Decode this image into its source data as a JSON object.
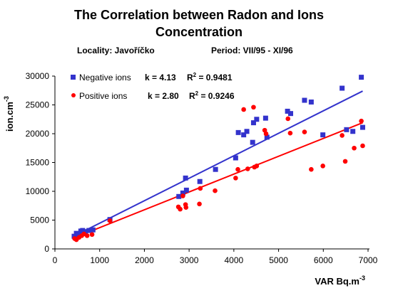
{
  "chart_data": {
    "type": "scatter",
    "title_line1": "The Correlation between Radon and Ions",
    "title_line2": "Concentration",
    "locality": "Locality: Javoříčko",
    "period": "Period: VII/95 - XI/96",
    "xlabel": "VAR  Bq.m",
    "xlabel_sup": "-3",
    "ylabel": "ion.cm",
    "ylabel_sup": "-3",
    "xlim": [
      0,
      7000
    ],
    "ylim": [
      0,
      30000
    ],
    "xticks": [
      "0",
      "1000",
      "2000",
      "3000",
      "4000",
      "5000",
      "6000",
      "7000"
    ],
    "yticks": [
      "0",
      "5000",
      "10000",
      "15000",
      "20000",
      "25000",
      "30000"
    ],
    "legend_position": "top-left",
    "grid": false,
    "series": [
      {
        "name": "Negative ions",
        "marker": "square",
        "color": "#3333cc",
        "stat_k": "k = 4.13",
        "stat_r2": "R",
        "stat_r2_sup": "2",
        "stat_r2_val": " = 0.9481",
        "trend": {
          "x": [
            420,
            6880
          ],
          "y": [
            2200,
            27400
          ]
        },
        "points": [
          {
            "x": 430,
            "y": 2200
          },
          {
            "x": 480,
            "y": 2700
          },
          {
            "x": 530,
            "y": 2500
          },
          {
            "x": 580,
            "y": 3100
          },
          {
            "x": 620,
            "y": 3200
          },
          {
            "x": 680,
            "y": 3000
          },
          {
            "x": 760,
            "y": 3200
          },
          {
            "x": 850,
            "y": 3300
          },
          {
            "x": 1230,
            "y": 5100
          },
          {
            "x": 2770,
            "y": 9100
          },
          {
            "x": 2860,
            "y": 9700
          },
          {
            "x": 2920,
            "y": 12300
          },
          {
            "x": 2940,
            "y": 10200
          },
          {
            "x": 3240,
            "y": 11700
          },
          {
            "x": 3590,
            "y": 13800
          },
          {
            "x": 4040,
            "y": 15800
          },
          {
            "x": 4100,
            "y": 20200
          },
          {
            "x": 4220,
            "y": 19800
          },
          {
            "x": 4290,
            "y": 20400
          },
          {
            "x": 4420,
            "y": 18500
          },
          {
            "x": 4440,
            "y": 21900
          },
          {
            "x": 4510,
            "y": 22500
          },
          {
            "x": 4710,
            "y": 22700
          },
          {
            "x": 4740,
            "y": 19400
          },
          {
            "x": 5200,
            "y": 23900
          },
          {
            "x": 5270,
            "y": 23500
          },
          {
            "x": 5580,
            "y": 25800
          },
          {
            "x": 5730,
            "y": 25500
          },
          {
            "x": 5990,
            "y": 19800
          },
          {
            "x": 6420,
            "y": 27900
          },
          {
            "x": 6520,
            "y": 20700
          },
          {
            "x": 6660,
            "y": 20400
          },
          {
            "x": 6850,
            "y": 29800
          },
          {
            "x": 6880,
            "y": 21100
          }
        ]
      },
      {
        "name": "Positive ions",
        "marker": "circle",
        "color": "#ff0000",
        "stat_k": "k = 2.80",
        "stat_r2": "R",
        "stat_r2_sup": "2",
        "stat_r2_val": " = 0.9246",
        "trend": {
          "x": [
            420,
            6880
          ],
          "y": [
            1900,
            21900
          ]
        },
        "points": [
          {
            "x": 440,
            "y": 1800
          },
          {
            "x": 480,
            "y": 1600
          },
          {
            "x": 540,
            "y": 2000
          },
          {
            "x": 600,
            "y": 2300
          },
          {
            "x": 650,
            "y": 2600
          },
          {
            "x": 720,
            "y": 2300
          },
          {
            "x": 830,
            "y": 2500
          },
          {
            "x": 1230,
            "y": 4900
          },
          {
            "x": 2760,
            "y": 7300
          },
          {
            "x": 2800,
            "y": 6900
          },
          {
            "x": 2860,
            "y": 9200
          },
          {
            "x": 2920,
            "y": 7700
          },
          {
            "x": 2930,
            "y": 7200
          },
          {
            "x": 3230,
            "y": 7800
          },
          {
            "x": 3250,
            "y": 10500
          },
          {
            "x": 3580,
            "y": 10100
          },
          {
            "x": 4040,
            "y": 12300
          },
          {
            "x": 4090,
            "y": 13800
          },
          {
            "x": 4220,
            "y": 24200
          },
          {
            "x": 4310,
            "y": 13900
          },
          {
            "x": 4440,
            "y": 24600
          },
          {
            "x": 4460,
            "y": 14200
          },
          {
            "x": 4510,
            "y": 14400
          },
          {
            "x": 4690,
            "y": 20600
          },
          {
            "x": 4720,
            "y": 20000
          },
          {
            "x": 5210,
            "y": 22600
          },
          {
            "x": 5260,
            "y": 20100
          },
          {
            "x": 5580,
            "y": 20300
          },
          {
            "x": 5730,
            "y": 13800
          },
          {
            "x": 5990,
            "y": 14400
          },
          {
            "x": 6420,
            "y": 19700
          },
          {
            "x": 6490,
            "y": 15200
          },
          {
            "x": 6690,
            "y": 17500
          },
          {
            "x": 6850,
            "y": 22200
          },
          {
            "x": 6880,
            "y": 17900
          }
        ]
      }
    ]
  }
}
